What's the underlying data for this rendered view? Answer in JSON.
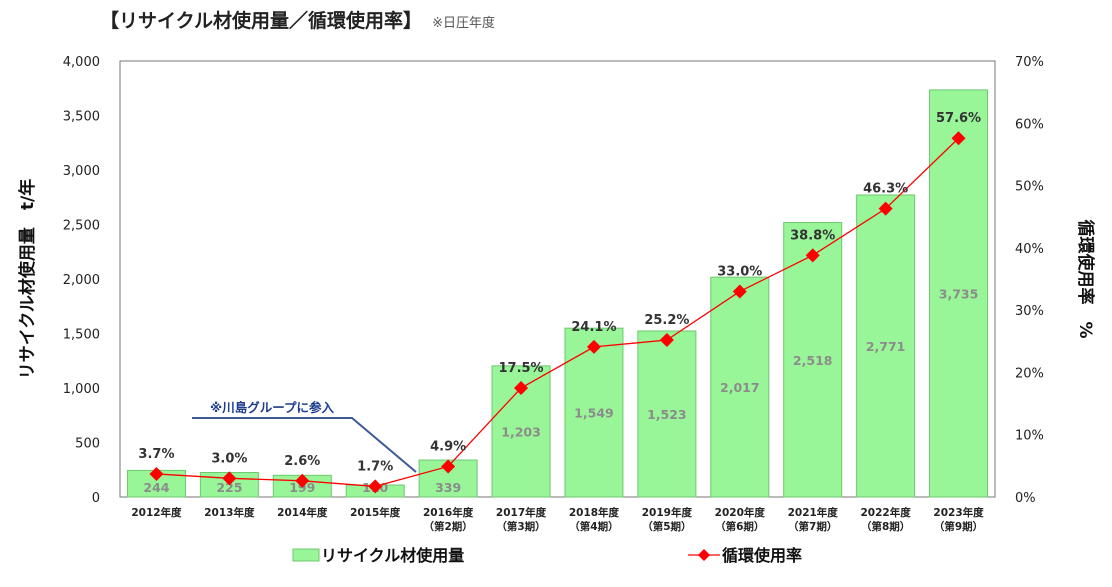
{
  "chart_data": {
    "type": "bar",
    "title": "【リサイクル材使用量／循環使用率】",
    "subtitle": "※日圧年度",
    "categories": [
      [
        "2012年度"
      ],
      [
        "2013年度"
      ],
      [
        "2014年度"
      ],
      [
        "2015年度"
      ],
      [
        "2016年度",
        "（第2期）"
      ],
      [
        "2017年度",
        "（第3期）"
      ],
      [
        "2018年度",
        "（第4期）"
      ],
      [
        "2019年度",
        "（第5期）"
      ],
      [
        "2020年度",
        "（第6期）"
      ],
      [
        "2021年度",
        "（第7期）"
      ],
      [
        "2022年度",
        "（第8期）"
      ],
      [
        "2023年度",
        "（第9期）"
      ]
    ],
    "series": [
      {
        "name": "リサイクル材使用量",
        "type": "bar",
        "axis": "left",
        "color": "#98f598",
        "values": [
          244,
          225,
          199,
          110,
          339,
          1203,
          1549,
          1523,
          2017,
          2518,
          2771,
          3735
        ],
        "labels": [
          "244",
          "225",
          "199",
          "110",
          "339",
          "1,203",
          "1,549",
          "1,523",
          "2,017",
          "2,518",
          "2,771",
          "3,735"
        ]
      },
      {
        "name": "循環使用率",
        "type": "line",
        "axis": "right",
        "color": "#ff0000",
        "values": [
          3.7,
          3.0,
          2.6,
          1.7,
          4.9,
          17.5,
          24.1,
          25.2,
          33.0,
          38.8,
          46.3,
          57.6
        ],
        "labels": [
          "3.7%",
          "3.0%",
          "2.6%",
          "1.7%",
          "4.9%",
          "17.5%",
          "24.1%",
          "25.2%",
          "33.0%",
          "38.8%",
          "46.3%",
          "57.6%"
        ]
      }
    ],
    "ylabel": "リサイクル材使用量　t/年",
    "y2label": "循環使用率　%",
    "ylim": [
      0,
      4000
    ],
    "y2lim": [
      0,
      70
    ],
    "yticks": [
      "0",
      "500",
      "1,000",
      "1,500",
      "2,000",
      "2,500",
      "3,000",
      "3,500",
      "4,000"
    ],
    "y2ticks": [
      "0%",
      "10%",
      "20%",
      "30%",
      "40%",
      "50%",
      "60%",
      "70%"
    ],
    "annotation": "※川島グループに参入",
    "grid": false,
    "legend_position": "bottom"
  }
}
